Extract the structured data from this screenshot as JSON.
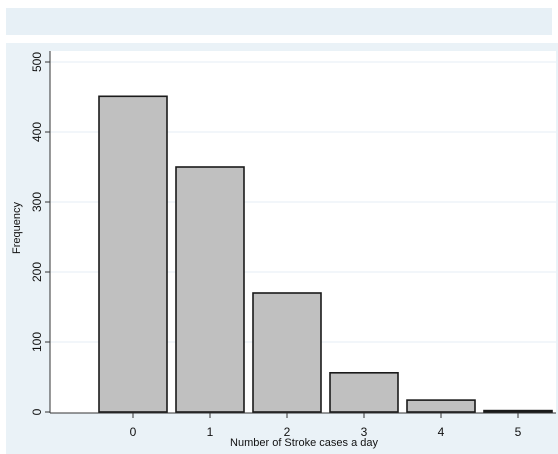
{
  "chart_data": {
    "type": "bar",
    "title": "",
    "xlabel": "Number of Stroke cases a day",
    "ylabel": "Frequency",
    "categories": [
      "0",
      "1",
      "2",
      "3",
      "4",
      "5"
    ],
    "values": [
      451,
      350,
      170,
      56,
      17,
      2
    ],
    "ylim": [
      0,
      500
    ],
    "yticks": [
      0,
      100,
      200,
      300,
      400,
      500
    ],
    "grid": true,
    "legend": "none",
    "colors": {
      "bar_fill": "#c0c0c0",
      "bar_stroke": "#1a1a1a",
      "plot_background": "#ffffff",
      "outer_background": "#eaf2f7",
      "gridline": "#e6eef4"
    }
  }
}
